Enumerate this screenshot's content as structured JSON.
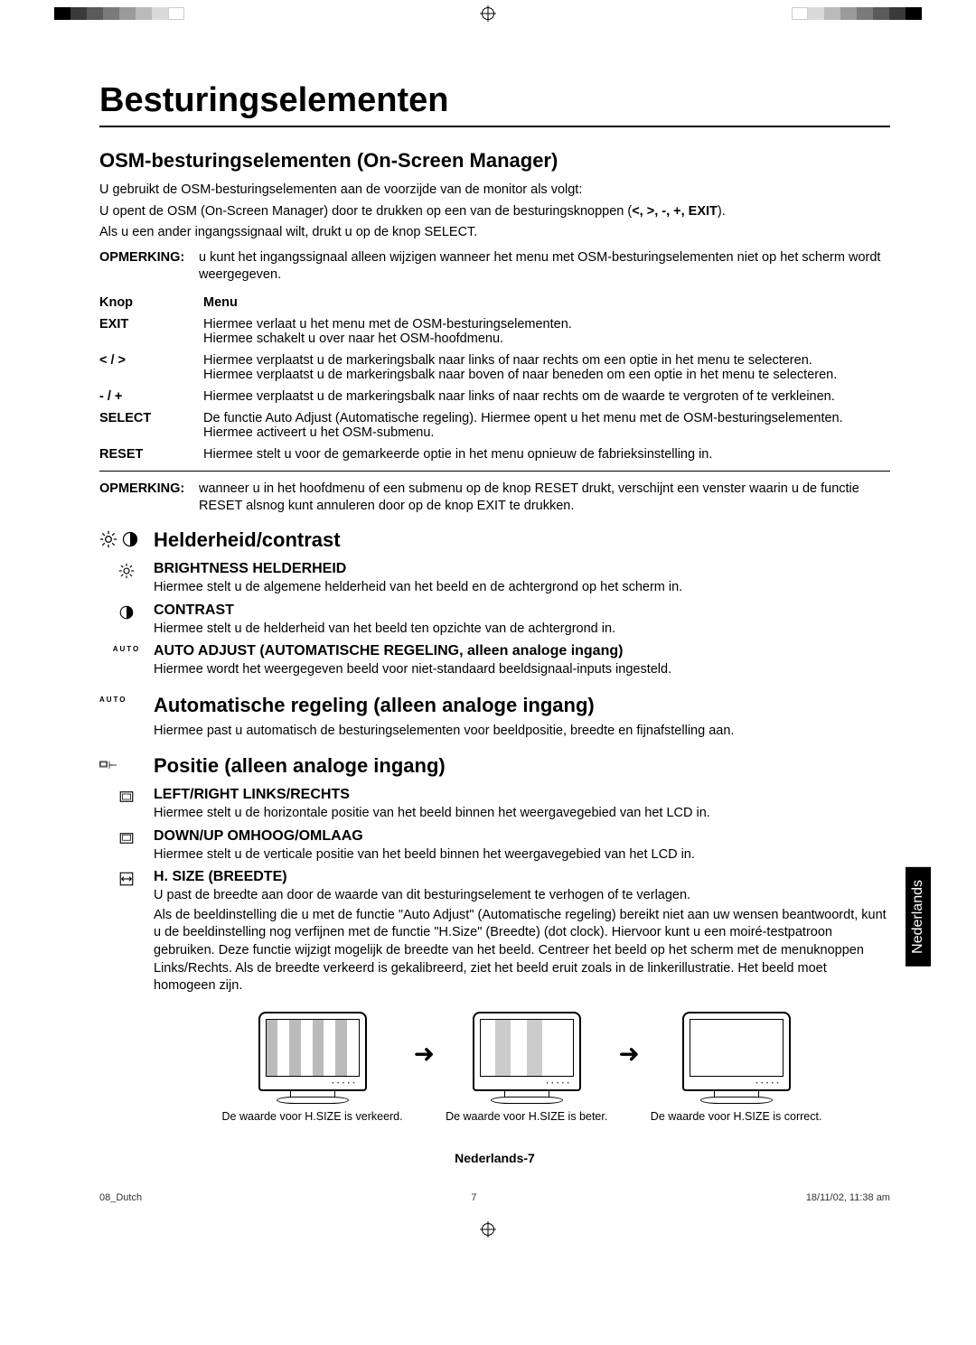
{
  "registration_colors_left": [
    "#000000",
    "#3a3a3a",
    "#5a5a5a",
    "#7a7a7a",
    "#9a9a9a",
    "#bababa",
    "#dadada",
    "#ffffff"
  ],
  "registration_colors_right": [
    "#ffffff",
    "#dadada",
    "#bababa",
    "#9a9a9a",
    "#7a7a7a",
    "#5a5a5a",
    "#3a3a3a",
    "#000000"
  ],
  "title": "Besturingselementen",
  "subtitle": "OSM-besturingselementen (On-Screen Manager)",
  "intro1": "U gebruikt de OSM-besturingselementen aan de voorzijde van de monitor als volgt:",
  "intro2_a": "U opent de OSM (On-Screen Manager) door te drukken op een van de besturingsknoppen (",
  "intro2_b": ").",
  "intro2_keys": "<, >, -, +, EXIT",
  "intro3": "Als u een ander ingangssignaal wilt, drukt u op  de knop SELECT.",
  "note1_label": "OPMERKING:",
  "note1_text": "u kunt het ingangssignaal alleen wijzigen wanneer het menu met OSM-besturingselementen niet op het scherm wordt weergegeven.",
  "th1": "Knop",
  "th2": "Menu",
  "rows": [
    {
      "k": "EXIT",
      "v": "Hiermee verlaat u het menu met de OSM-besturingselementen.\nHiermee schakelt u over naar het OSM-hoofdmenu."
    },
    {
      "k": "< / >",
      "v": "Hiermee verplaatst u de markeringsbalk naar links of naar rechts om een optie in het menu te selecteren.\nHiermee verplaatst u de markeringsbalk naar boven of naar beneden om een optie in het menu te selecteren."
    },
    {
      "k": "- / +",
      "v": "Hiermee verplaatst u de markeringsbalk naar links of naar rechts om de waarde te vergroten of te verkleinen."
    },
    {
      "k": "SELECT",
      "v": "De functie Auto Adjust (Automatische regeling). Hiermee opent u het menu met de OSM-besturingselementen. Hiermee activeert u het OSM-submenu."
    },
    {
      "k": "RESET",
      "v": "Hiermee stelt u voor de gemarkeerde optie in het menu opnieuw de fabrieksinstelling in."
    }
  ],
  "note2_label": "OPMERKING:",
  "note2_text": "wanneer u in het hoofdmenu of een submenu op de knop RESET drukt, verschijnt een venster waarin u de functie RESET alsnog kunt annuleren door op de knop EXIT te drukken.",
  "sec_bc": "Helderheid/contrast",
  "brightness_h": "BRIGHTNESS HELDERHEID",
  "brightness_t": "Hiermee stelt u de algemene helderheid van het beeld en de achtergrond op het scherm in.",
  "contrast_h": "CONTRAST",
  "contrast_t": "Hiermee stelt u de helderheid van het beeld ten opzichte van de achtergrond in.",
  "autoadj_h": "AUTO ADJUST (AUTOMATISCHE REGELING, alleen analoge ingang)",
  "autoadj_t": "Hiermee wordt het weergegeven beeld voor niet-standaard beeldsignaal-inputs ingesteld.",
  "auto_label": "AUTO",
  "sec_auto": "Automatische regeling (alleen analoge ingang)",
  "sec_auto_t": "Hiermee past u automatisch de besturingselementen voor beeldpositie, breedte en fijnafstelling aan.",
  "sec_pos": "Positie (alleen analoge ingang)",
  "lr_h": "LEFT/RIGHT LINKS/RECHTS",
  "lr_t": "Hiermee stelt u de horizontale positie van het beeld binnen het weergavegebied van het LCD in.",
  "du_h": "DOWN/UP OMHOOG/OMLAAG",
  "du_t": "Hiermee stelt u de verticale positie van het beeld binnen het weergavegebied van het LCD in.",
  "hs_h": "H. SIZE (BREEDTE)",
  "hs_t1": "U past de breedte aan door de waarde van dit besturingselement te verhogen of te verlagen.",
  "hs_t2": "Als de beeldinstelling die u met de functie \"Auto Adjust\" (Automatische regeling) bereikt niet aan uw wensen beantwoordt, kunt u de beeldinstelling nog verfijnen met de functie \"H.Size\" (Breedte) (dot clock). Hiervoor kunt u een moiré-testpatroon gebruiken. Deze functie wijzigt mogelijk de breedte van het beeld. Centreer het beeld op het scherm met de menuknoppen Links/Rechts. Als de breedte verkeerd is gekalibreerd, ziet het beeld eruit zoals in de linkerillustratie. Het beeld moet homogeen zijn.",
  "mon1": "De waarde voor H.SIZE is verkeerd.",
  "mon2": "De waarde voor H.SIZE is beter.",
  "mon3": "De waarde voor H.SIZE is correct.",
  "side_tab": "Nederlands",
  "page_label": "Nederlands-7",
  "footer_file": "08_Dutch",
  "footer_page": "7",
  "footer_date": "18/11/02, 11:38 am"
}
